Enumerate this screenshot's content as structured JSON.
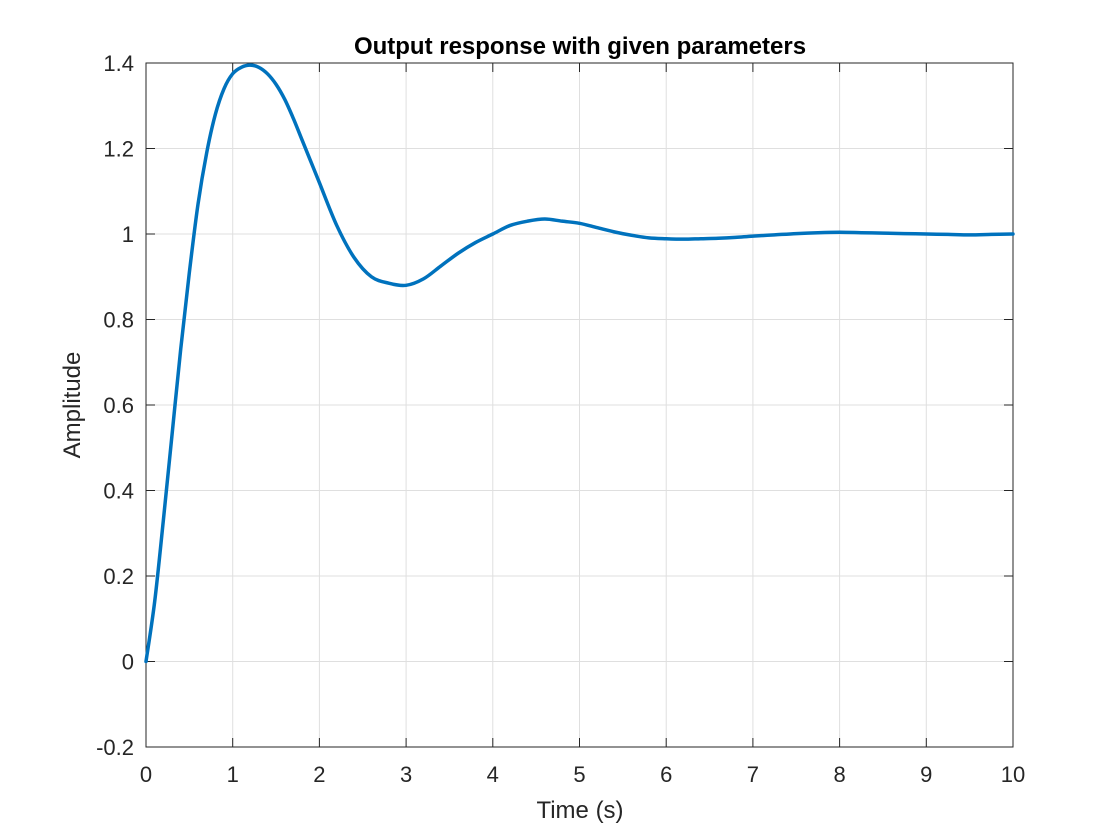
{
  "chart_data": {
    "type": "line",
    "title": "Output response with given parameters",
    "xlabel": "Time (s)",
    "ylabel": "Amplitude",
    "xlim": [
      0,
      10
    ],
    "ylim": [
      -0.2,
      1.4
    ],
    "xticks": [
      0,
      1,
      2,
      3,
      4,
      5,
      6,
      7,
      8,
      9,
      10
    ],
    "xtick_labels": [
      "0",
      "1",
      "2",
      "3",
      "4",
      "5",
      "6",
      "7",
      "8",
      "9",
      "10"
    ],
    "yticks": [
      -0.2,
      0,
      0.2,
      0.4,
      0.6,
      0.8,
      1,
      1.2,
      1.4
    ],
    "ytick_labels": [
      "-0.2",
      "0",
      "0.2",
      "0.4",
      "0.6",
      "0.8",
      "1",
      "1.2",
      "1.4"
    ],
    "grid": true,
    "series": [
      {
        "color": "#0072BD",
        "x": [
          0,
          0.1,
          0.2,
          0.3,
          0.4,
          0.5,
          0.6,
          0.7,
          0.8,
          0.9,
          1.0,
          1.1,
          1.2,
          1.3,
          1.4,
          1.5,
          1.6,
          1.7,
          1.8,
          1.9,
          2.0,
          2.2,
          2.4,
          2.6,
          2.8,
          3.0,
          3.2,
          3.4,
          3.6,
          3.8,
          4.0,
          4.2,
          4.4,
          4.6,
          4.8,
          5.0,
          5.2,
          5.4,
          5.6,
          5.8,
          6.0,
          6.2,
          6.4,
          6.6,
          6.8,
          7.0,
          7.25,
          7.5,
          7.75,
          8.0,
          8.25,
          8.5,
          8.75,
          9.0,
          9.25,
          9.5,
          9.75,
          10.0
        ],
        "y": [
          0,
          0.14,
          0.33,
          0.53,
          0.73,
          0.91,
          1.07,
          1.19,
          1.28,
          1.34,
          1.375,
          1.39,
          1.395,
          1.39,
          1.375,
          1.35,
          1.315,
          1.27,
          1.22,
          1.17,
          1.12,
          1.02,
          0.945,
          0.9,
          0.885,
          0.88,
          0.895,
          0.925,
          0.955,
          0.98,
          1.0,
          1.02,
          1.03,
          1.035,
          1.03,
          1.025,
          1.015,
          1.005,
          0.997,
          0.991,
          0.989,
          0.988,
          0.989,
          0.99,
          0.992,
          0.995,
          0.998,
          1.001,
          1.003,
          1.004,
          1.003,
          1.002,
          1.001,
          1.0,
          0.999,
          0.998,
          0.999,
          1.0
        ]
      }
    ]
  }
}
